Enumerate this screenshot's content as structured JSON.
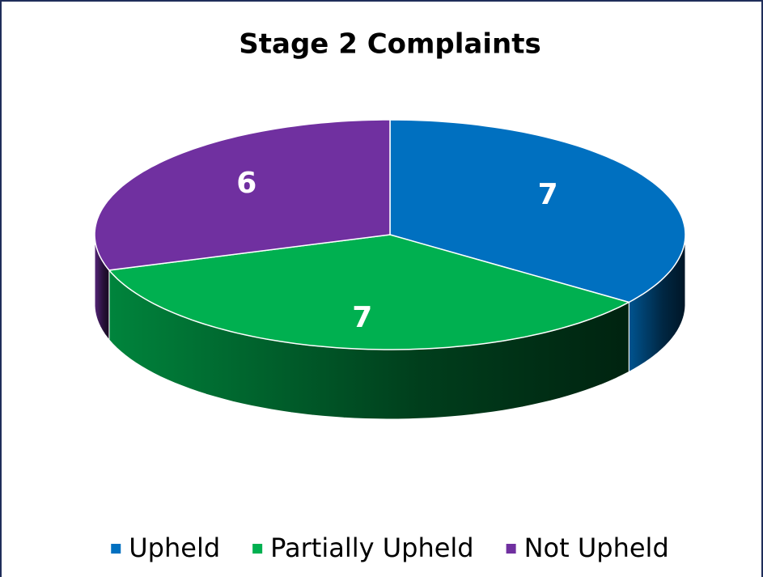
{
  "chart_data": {
    "type": "pie",
    "title": "Stage 2 Complaints",
    "categories": [
      "Upheld",
      "Partially Upheld",
      "Not Upheld"
    ],
    "values": [
      7,
      7,
      6
    ],
    "colors": [
      "#0070c0",
      "#00b050",
      "#7030a0"
    ],
    "legend": "bottom"
  }
}
